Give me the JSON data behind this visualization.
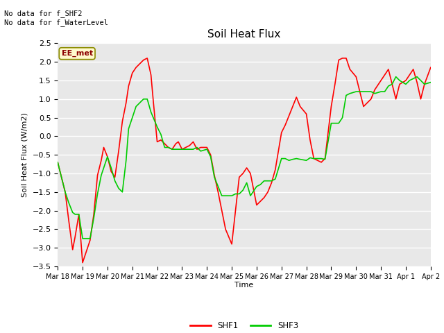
{
  "title": "Soil Heat Flux",
  "xlabel": "Time",
  "ylabel": "Soil Heat Flux (W/m2)",
  "ylim": [
    -3.5,
    2.5
  ],
  "plot_bg_color": "#e8e8e8",
  "fig_bg_color": "#ffffff",
  "annotation_text": "No data for f_SHF2\nNo data for f_WaterLevel",
  "ee_met_label": "EE_met",
  "legend_entries": [
    "SHF1",
    "SHF3"
  ],
  "legend_colors": [
    "#ff0000",
    "#00cc00"
  ],
  "xtick_labels": [
    "Mar 18",
    "Mar 19",
    "Mar 20",
    "Mar 21",
    "Mar 22",
    "Mar 23",
    "Mar 24",
    "Mar 25",
    "Mar 26",
    "Mar 27",
    "Mar 28",
    "Mar 29",
    "Mar 30",
    "Mar 31",
    "Apr 1",
    "Apr 2"
  ],
  "shf1_x": [
    0,
    0.15,
    0.3,
    0.45,
    0.6,
    0.7,
    0.85,
    1.0,
    1.15,
    1.3,
    1.45,
    1.6,
    1.75,
    1.85,
    2.0,
    2.15,
    2.3,
    2.45,
    2.6,
    2.75,
    2.85,
    3.0,
    3.15,
    3.3,
    3.45,
    3.6,
    3.75,
    3.85,
    4.0,
    4.15,
    4.3,
    4.45,
    4.6,
    4.75,
    4.85,
    5.0,
    5.15,
    5.3,
    5.45,
    5.6,
    5.75,
    6.0,
    6.15,
    6.3,
    6.45,
    6.6,
    6.75,
    7.0,
    7.15,
    7.3,
    7.45,
    7.6,
    7.75,
    8.0,
    8.15,
    8.3,
    8.45,
    8.6,
    8.75,
    9.0,
    9.15,
    9.3,
    9.45,
    9.6,
    9.75,
    10.0,
    10.15,
    10.3,
    10.45,
    10.6,
    10.75,
    11.0,
    11.15,
    11.3,
    11.45,
    11.6,
    11.75,
    12.0,
    12.15,
    12.3,
    12.45,
    12.6,
    12.75,
    13.0,
    13.15,
    13.3,
    13.45,
    13.6,
    13.75,
    14.0,
    14.15,
    14.3,
    14.45,
    14.6,
    14.75,
    15.0
  ],
  "shf1_y": [
    -0.7,
    -1.1,
    -1.5,
    -2.3,
    -3.05,
    -2.7,
    -2.1,
    -3.4,
    -3.1,
    -2.8,
    -2.1,
    -1.05,
    -0.65,
    -0.3,
    -0.55,
    -0.95,
    -1.1,
    -0.4,
    0.4,
    0.9,
    1.35,
    1.7,
    1.85,
    1.95,
    2.05,
    2.1,
    1.65,
    0.9,
    -0.15,
    -0.1,
    -0.2,
    -0.3,
    -0.35,
    -0.2,
    -0.15,
    -0.35,
    -0.3,
    -0.25,
    -0.15,
    -0.35,
    -0.3,
    -0.3,
    -0.5,
    -1.05,
    -1.5,
    -2.0,
    -2.5,
    -2.9,
    -2.0,
    -1.1,
    -1.0,
    -0.85,
    -1.0,
    -1.85,
    -1.75,
    -1.65,
    -1.5,
    -1.25,
    -0.9,
    0.1,
    0.3,
    0.55,
    0.8,
    1.05,
    0.8,
    0.6,
    -0.1,
    -0.6,
    -0.65,
    -0.7,
    -0.6,
    0.8,
    1.4,
    2.05,
    2.1,
    2.1,
    1.8,
    1.6,
    1.2,
    0.8,
    0.9,
    1.0,
    1.25,
    1.5,
    1.65,
    1.8,
    1.4,
    1.0,
    1.4,
    1.5,
    1.65,
    1.8,
    1.45,
    1.0,
    1.4,
    1.85
  ],
  "shf3_x": [
    0,
    0.15,
    0.3,
    0.45,
    0.6,
    0.7,
    0.85,
    1.0,
    1.15,
    1.3,
    1.45,
    1.6,
    1.75,
    2.0,
    2.15,
    2.3,
    2.45,
    2.6,
    2.75,
    2.85,
    3.0,
    3.15,
    3.3,
    3.45,
    3.6,
    3.75,
    4.0,
    4.15,
    4.3,
    4.45,
    4.6,
    4.75,
    5.0,
    5.15,
    5.3,
    5.45,
    5.6,
    5.75,
    6.0,
    6.15,
    6.3,
    6.45,
    6.6,
    7.0,
    7.15,
    7.3,
    7.45,
    7.6,
    7.75,
    8.0,
    8.15,
    8.3,
    8.45,
    8.6,
    8.75,
    9.0,
    9.15,
    9.3,
    9.45,
    9.6,
    9.75,
    10.0,
    10.15,
    10.3,
    10.45,
    10.6,
    10.75,
    11.0,
    11.15,
    11.3,
    11.45,
    11.6,
    11.75,
    12.0,
    12.15,
    12.3,
    12.45,
    12.6,
    12.75,
    13.0,
    13.15,
    13.3,
    13.45,
    13.6,
    13.75,
    14.0,
    14.15,
    14.3,
    14.45,
    14.6,
    14.75,
    15.0
  ],
  "shf3_y": [
    -0.7,
    -1.1,
    -1.5,
    -1.8,
    -2.05,
    -2.1,
    -2.1,
    -2.75,
    -2.75,
    -2.75,
    -2.2,
    -1.55,
    -1.05,
    -0.55,
    -0.85,
    -1.2,
    -1.4,
    -1.5,
    -0.65,
    0.2,
    0.5,
    0.8,
    0.9,
    1.0,
    1.0,
    0.65,
    0.25,
    0.05,
    -0.3,
    -0.3,
    -0.35,
    -0.35,
    -0.35,
    -0.35,
    -0.35,
    -0.35,
    -0.3,
    -0.4,
    -0.35,
    -0.55,
    -1.1,
    -1.35,
    -1.6,
    -1.6,
    -1.55,
    -1.55,
    -1.45,
    -1.25,
    -1.6,
    -1.35,
    -1.3,
    -1.2,
    -1.2,
    -1.2,
    -1.15,
    -0.6,
    -0.6,
    -0.65,
    -0.62,
    -0.6,
    -0.62,
    -0.65,
    -0.58,
    -0.6,
    -0.6,
    -0.6,
    -0.62,
    0.35,
    0.35,
    0.35,
    0.5,
    1.1,
    1.15,
    1.2,
    1.2,
    1.2,
    1.2,
    1.2,
    1.15,
    1.2,
    1.2,
    1.35,
    1.4,
    1.6,
    1.5,
    1.4,
    1.5,
    1.55,
    1.6,
    1.5,
    1.4,
    1.45
  ]
}
